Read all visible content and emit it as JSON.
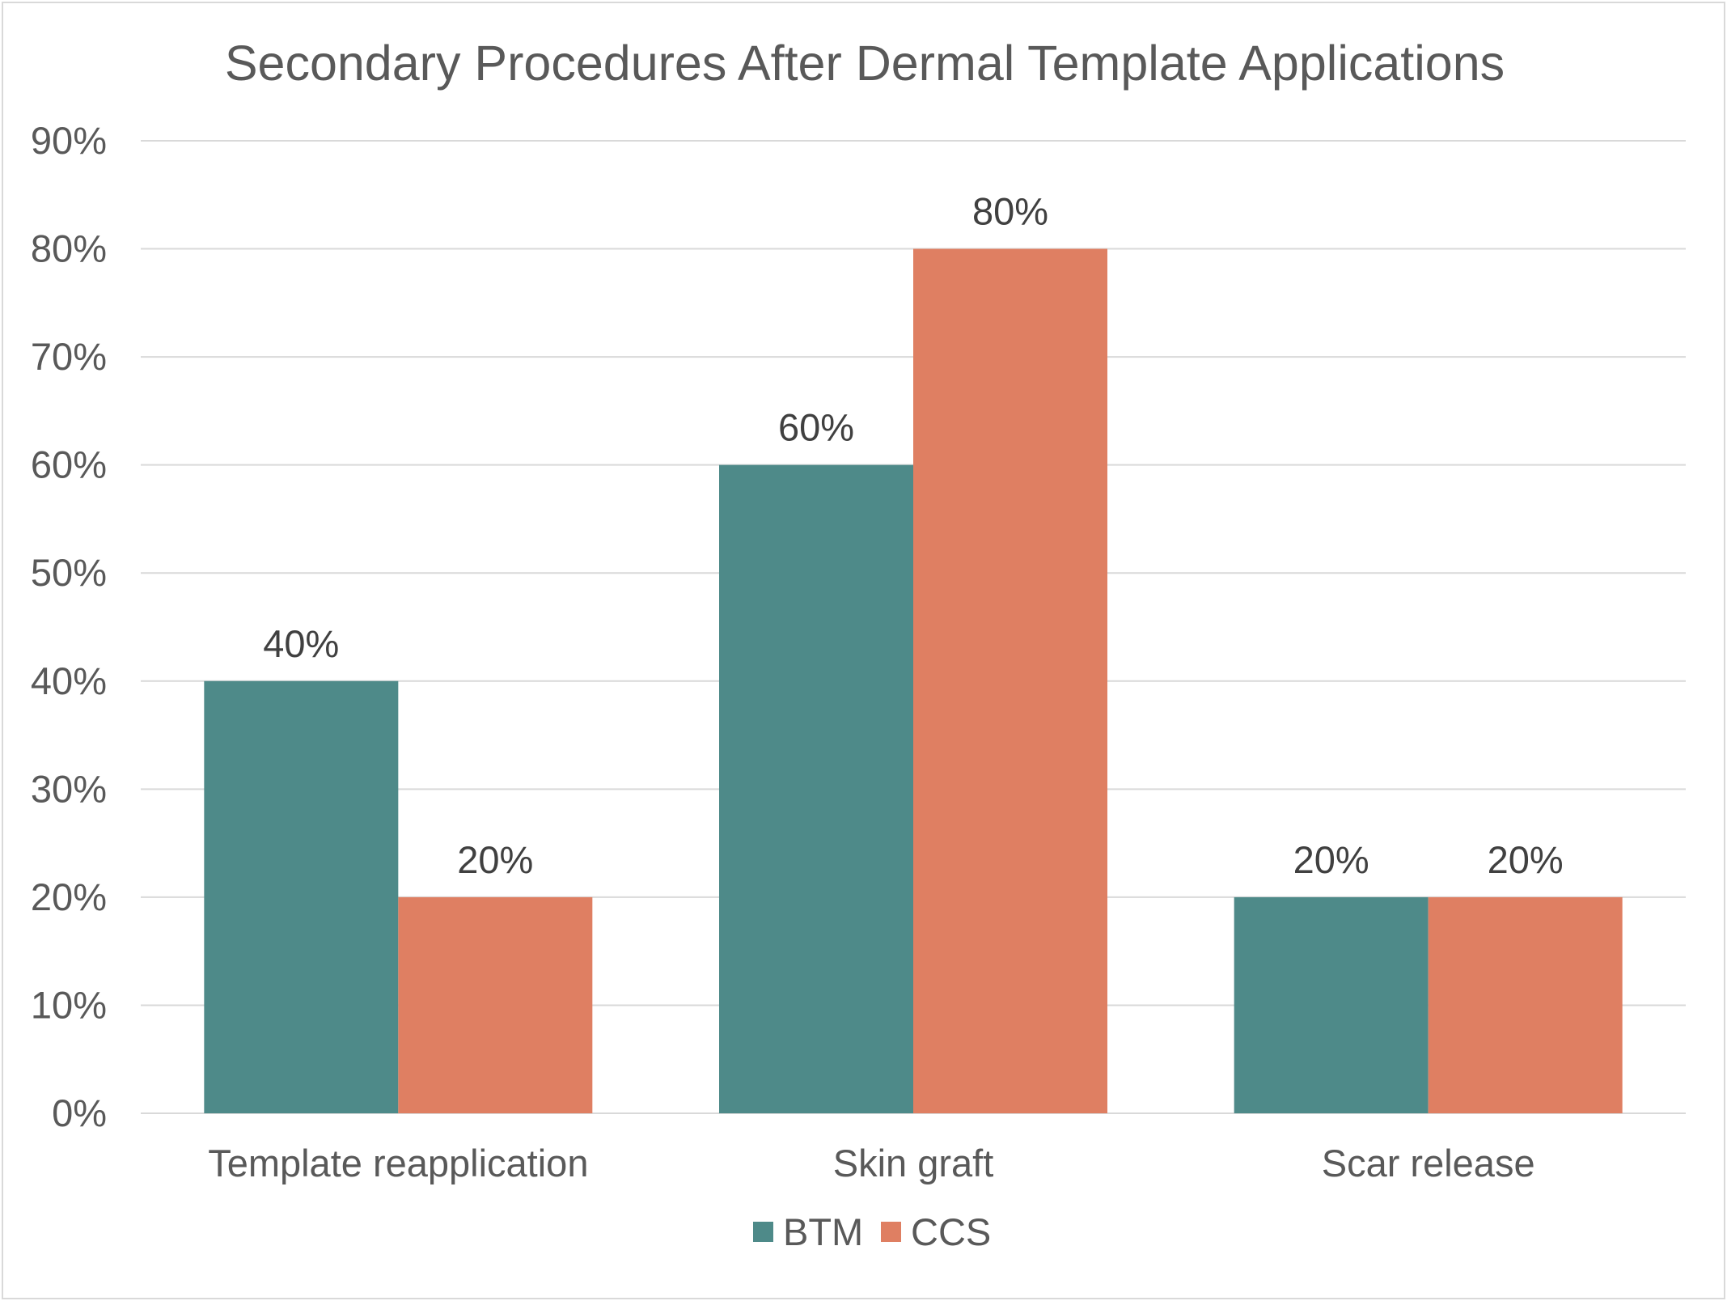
{
  "chart_data": {
    "type": "bar",
    "title": "Secondary Procedures After Dermal Template Applications",
    "categories": [
      "Template reapplication",
      "Skin graft",
      "Scar release"
    ],
    "series": [
      {
        "name": "BTM",
        "color": "#4e8a89",
        "values": [
          40,
          60,
          20
        ],
        "labels": [
          "40%",
          "60%",
          "20%"
        ]
      },
      {
        "name": "CCS",
        "color": "#df7f62",
        "values": [
          20,
          80,
          20
        ],
        "labels": [
          "20%",
          "80%",
          "20%"
        ]
      }
    ],
    "ylim": [
      0,
      90
    ],
    "ytick_step": 10,
    "yticks": [
      "0%",
      "10%",
      "20%",
      "30%",
      "40%",
      "50%",
      "60%",
      "70%",
      "80%",
      "90%"
    ],
    "xlabel": "",
    "ylabel": "",
    "grid": true,
    "gridline_color": "#d9d9d9",
    "legend_position": "bottom"
  }
}
